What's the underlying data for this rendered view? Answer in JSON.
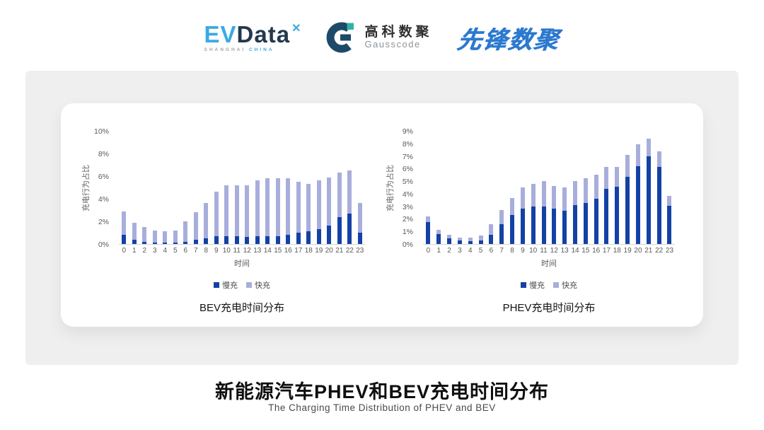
{
  "header": {
    "logos": {
      "evdata": {
        "text_ev": "EV",
        "text_data": "Data",
        "mark": "✕",
        "sub_left": "SHANGHAI",
        "sub_right": "CHINA"
      },
      "gausscode": {
        "cn": "高科数聚",
        "en": "Gausscode"
      },
      "xianfeng": {
        "text": "先锋数聚"
      }
    }
  },
  "footer": {
    "title": "新能源汽车PHEV和BEV充电时间分布",
    "subtitle": "The Charging Time Distribution of PHEV and BEV"
  },
  "colors": {
    "slow": "#1441a5",
    "fast": "#a8aedb",
    "panel": "#efefef"
  },
  "chart_data": [
    {
      "type": "bar",
      "stacked": true,
      "title": "BEV充电时间分布",
      "xlabel": "时间",
      "ylabel": "充电行为占比",
      "ylim": [
        0,
        10
      ],
      "ytick_step": 2,
      "grid": false,
      "legend_position": "bottom",
      "categories": [
        "0",
        "1",
        "2",
        "3",
        "4",
        "5",
        "6",
        "7",
        "8",
        "9",
        "10",
        "11",
        "12",
        "13",
        "14",
        "15",
        "16",
        "17",
        "18",
        "19",
        "20",
        "21",
        "22",
        "23"
      ],
      "series": [
        {
          "name": "慢充",
          "color": "#1441a5",
          "values": [
            0.8,
            0.4,
            0.2,
            0.1,
            0.1,
            0.1,
            0.2,
            0.4,
            0.5,
            0.7,
            0.7,
            0.7,
            0.6,
            0.7,
            0.7,
            0.7,
            0.8,
            1.0,
            1.1,
            1.3,
            1.6,
            2.4,
            2.7,
            1.0
          ]
        },
        {
          "name": "快充",
          "color": "#a8aedb",
          "values": [
            2.1,
            1.5,
            1.3,
            1.1,
            1.0,
            1.1,
            1.8,
            2.4,
            3.1,
            3.9,
            4.5,
            4.5,
            4.6,
            4.9,
            5.1,
            5.1,
            5.0,
            4.5,
            4.2,
            4.3,
            4.3,
            3.9,
            3.8,
            2.6
          ]
        }
      ]
    },
    {
      "type": "bar",
      "stacked": true,
      "title": "PHEV充电时间分布",
      "xlabel": "时间",
      "ylabel": "充电行为占比",
      "ylim": [
        0,
        9
      ],
      "ytick_step": 1,
      "grid": false,
      "legend_position": "bottom",
      "categories": [
        "0",
        "1",
        "2",
        "3",
        "4",
        "5",
        "6",
        "7",
        "8",
        "9",
        "10",
        "11",
        "12",
        "13",
        "14",
        "15",
        "16",
        "17",
        "18",
        "19",
        "20",
        "21",
        "22",
        "23"
      ],
      "series": [
        {
          "name": "慢充",
          "color": "#1441a5",
          "values": [
            1.75,
            0.8,
            0.45,
            0.3,
            0.25,
            0.3,
            0.75,
            1.6,
            2.3,
            2.8,
            3.0,
            3.0,
            2.8,
            2.65,
            3.1,
            3.25,
            3.6,
            4.4,
            4.55,
            5.35,
            6.2,
            7.0,
            6.15,
            3.05
          ]
        },
        {
          "name": "快充",
          "color": "#a8aedb",
          "values": [
            0.45,
            0.35,
            0.3,
            0.2,
            0.25,
            0.4,
            0.85,
            1.1,
            1.35,
            1.7,
            1.8,
            2.0,
            1.8,
            1.85,
            1.9,
            2.0,
            1.9,
            1.75,
            1.6,
            1.75,
            1.75,
            1.4,
            1.2,
            0.8
          ]
        }
      ]
    }
  ]
}
